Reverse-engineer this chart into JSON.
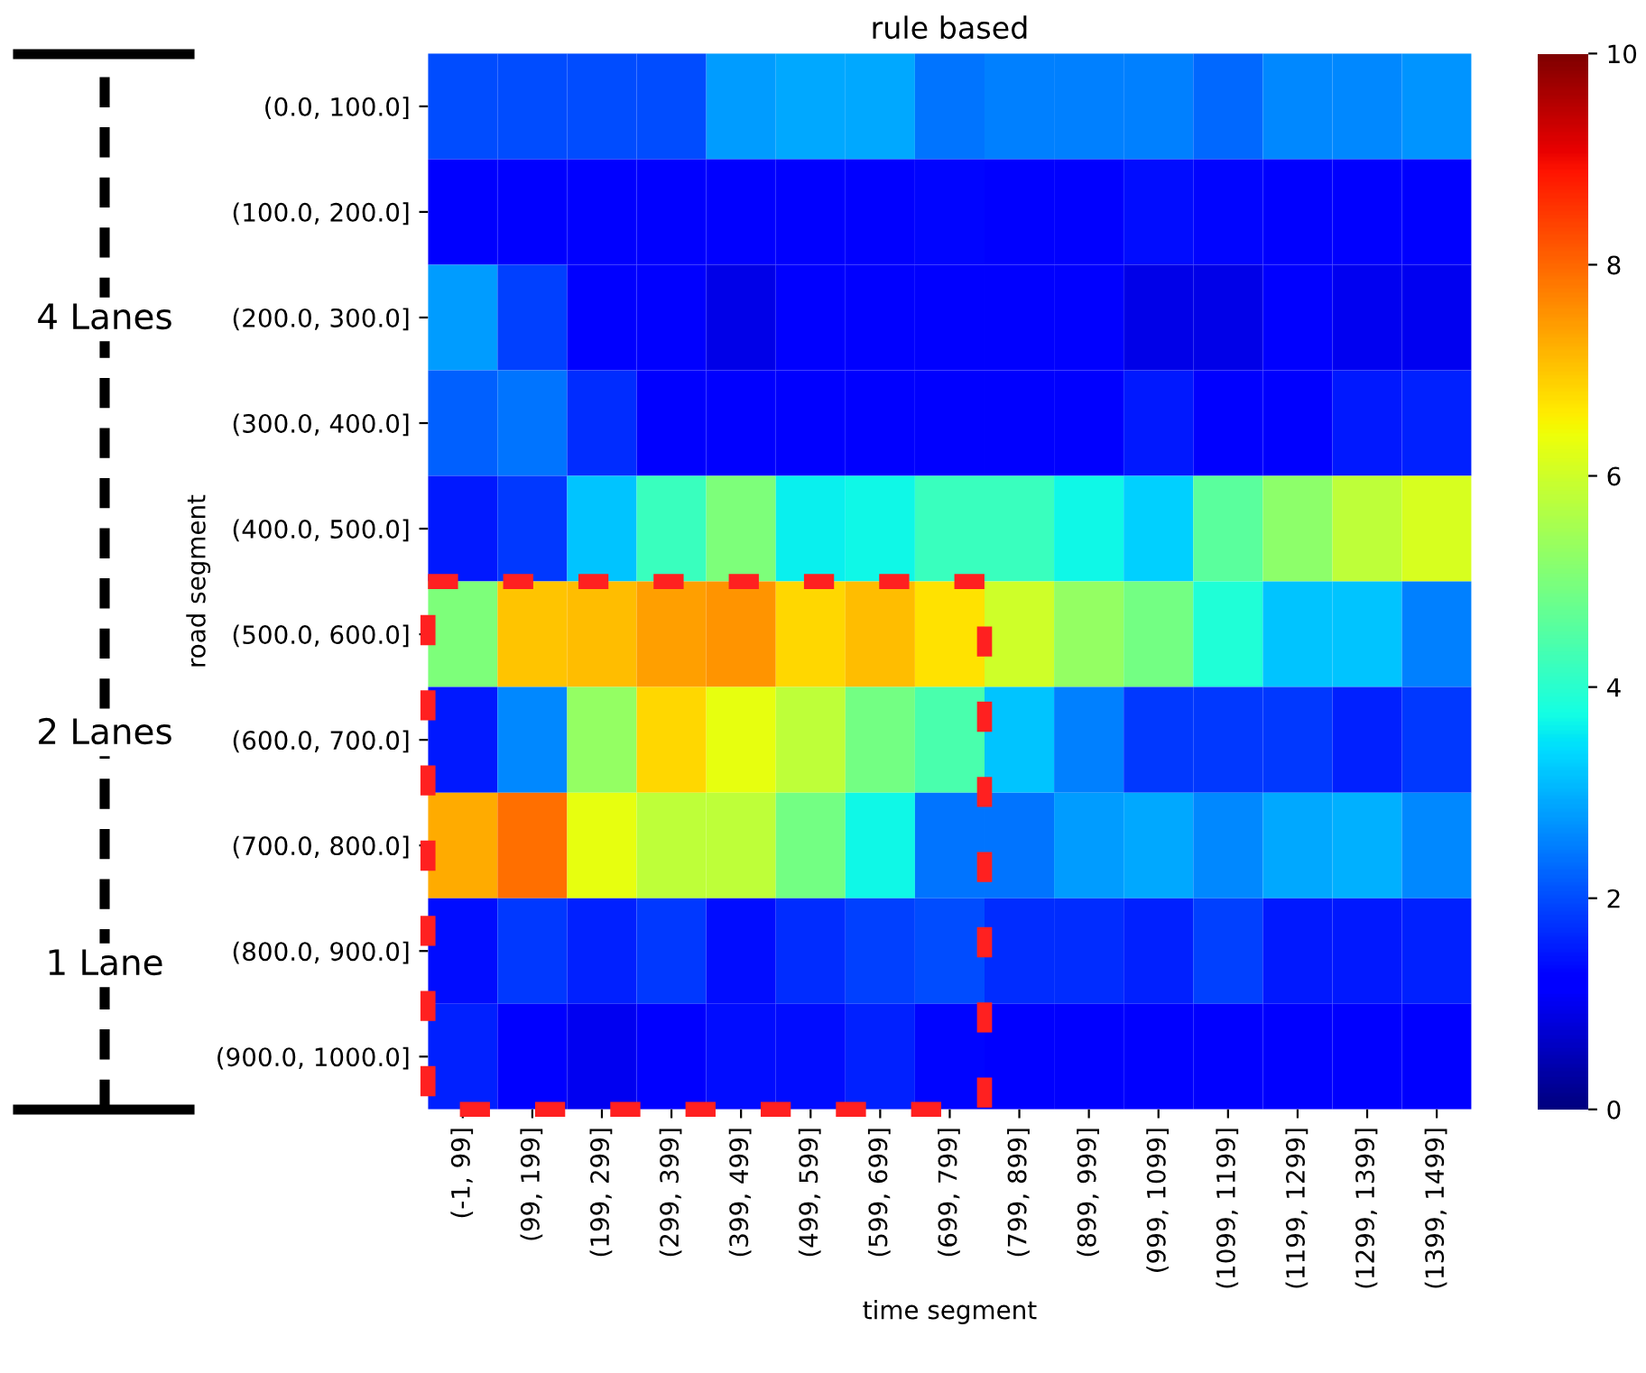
{
  "chart_data": {
    "type": "heatmap",
    "title": "rule based",
    "xlabel": "time segment",
    "ylabel": "road segment",
    "categories": [
      "(-1, 99]",
      "(99, 199]",
      "(199, 299]",
      "(299, 399]",
      "(399, 499]",
      "(499, 599]",
      "(599, 699]",
      "(699, 799]",
      "(799, 899]",
      "(899, 999]",
      "(999, 1099]",
      "(1099, 1199]",
      "(1199, 1299]",
      "(1299, 1399]",
      "(1399, 1499]"
    ],
    "y_categories": [
      "(0.0, 100.0]",
      "(100.0, 200.0]",
      "(200.0, 300.0]",
      "(300.0, 400.0]",
      "(400.0, 500.0]",
      "(500.0, 600.0]",
      "(600.0, 700.0]",
      "(700.0, 800.0]",
      "(800.0, 900.0]",
      "(900.0, 1000.0]"
    ],
    "cells": [
      [
        2.0,
        2.0,
        2.0,
        2.0,
        2.8,
        2.9,
        2.9,
        2.4,
        2.5,
        2.5,
        2.5,
        2.3,
        2.6,
        2.6,
        2.7
      ],
      [
        1.2,
        1.2,
        1.2,
        1.2,
        1.2,
        1.2,
        1.2,
        1.3,
        1.2,
        1.1,
        1.4,
        1.3,
        1.2,
        1.2,
        1.2
      ],
      [
        2.8,
        1.9,
        1.1,
        1.1,
        0.9,
        1.1,
        1.1,
        1.1,
        1.1,
        1.2,
        0.9,
        0.9,
        1.1,
        1.0,
        1.0
      ],
      [
        2.2,
        2.4,
        1.7,
        1.1,
        1.1,
        1.1,
        1.1,
        1.1,
        1.1,
        1.1,
        1.5,
        1.2,
        1.1,
        1.5,
        1.6
      ],
      [
        1.5,
        1.8,
        3.2,
        4.2,
        5.0,
        3.6,
        3.7,
        4.2,
        4.2,
        3.7,
        3.3,
        4.6,
        5.2,
        5.8,
        6.1
      ],
      [
        5.0,
        7.0,
        7.1,
        7.4,
        7.5,
        6.8,
        7.1,
        6.7,
        6.0,
        5.3,
        4.9,
        3.9,
        3.2,
        3.2,
        2.5
      ],
      [
        1.5,
        2.6,
        5.3,
        6.8,
        6.3,
        5.8,
        4.9,
        4.4,
        3.2,
        2.5,
        1.8,
        1.8,
        1.8,
        1.6,
        1.8
      ],
      [
        7.3,
        7.9,
        6.3,
        5.8,
        5.8,
        4.9,
        3.7,
        2.4,
        2.4,
        2.8,
        2.9,
        2.6,
        2.9,
        3.0,
        2.6
      ],
      [
        1.4,
        1.8,
        1.6,
        1.8,
        1.4,
        1.7,
        1.9,
        2.0,
        1.7,
        1.7,
        1.6,
        1.9,
        1.5,
        1.5,
        1.6
      ],
      [
        1.6,
        1.1,
        1.0,
        1.1,
        1.4,
        1.4,
        1.6,
        1.3,
        1.2,
        1.2,
        1.2,
        1.1,
        1.1,
        1.2,
        1.2
      ]
    ],
    "clim": [
      0,
      10
    ],
    "cticks": [
      0,
      2,
      4,
      6,
      8,
      10
    ],
    "annotations": [
      "4 Lanes",
      "2 Lanes",
      "1 Lane"
    ]
  }
}
